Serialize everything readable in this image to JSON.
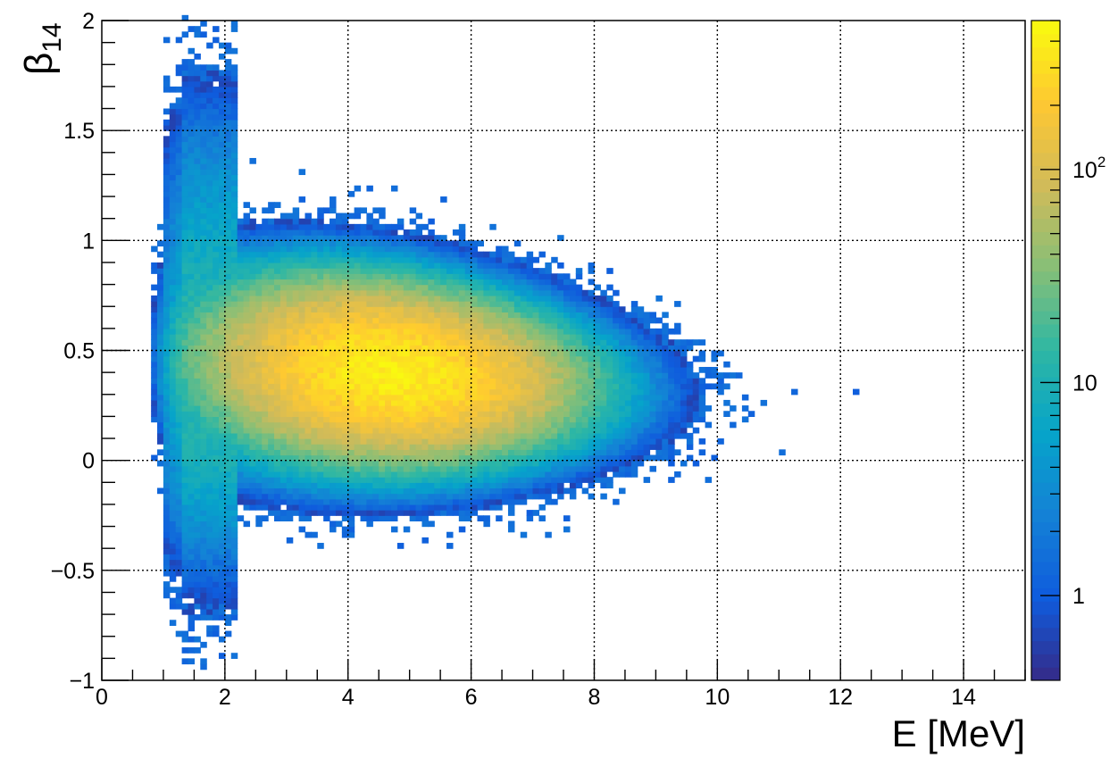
{
  "chart_data": {
    "type": "heatmap",
    "title": "",
    "xlabel": "E [MeV]",
    "ylabel_symbol": "β",
    "ylabel_subscript": "14",
    "xlim": [
      0,
      15
    ],
    "ylim": [
      -1,
      2
    ],
    "x_ticks": [
      {
        "value": 0,
        "label": "0"
      },
      {
        "value": 2,
        "label": "2"
      },
      {
        "value": 4,
        "label": "4"
      },
      {
        "value": 6,
        "label": "6"
      },
      {
        "value": 8,
        "label": "8"
      },
      {
        "value": 10,
        "label": "10"
      },
      {
        "value": 12,
        "label": "12"
      },
      {
        "value": 14,
        "label": "14"
      }
    ],
    "y_ticks": [
      {
        "value": -1,
        "label": "−1"
      },
      {
        "value": -0.5,
        "label": "−0.5"
      },
      {
        "value": 0,
        "label": "0"
      },
      {
        "value": 0.5,
        "label": "0.5"
      },
      {
        "value": 1,
        "label": "1"
      },
      {
        "value": 1.5,
        "label": "1.5"
      },
      {
        "value": 2,
        "label": "2"
      }
    ],
    "grid": true,
    "colorbar": {
      "scale": "log",
      "range": [
        0.4,
        500
      ],
      "ticks": [
        {
          "value": 1,
          "label": "1"
        },
        {
          "value": 10,
          "label": "10"
        },
        {
          "value": 100,
          "label": "10",
          "sup": "2"
        }
      ],
      "palette": [
        "#352a87",
        "#0f5cdd",
        "#1481d6",
        "#06a4ca",
        "#2eb7a4",
        "#87bf77",
        "#d1bb59",
        "#fec832",
        "#f9fb0e"
      ]
    },
    "distribution": {
      "description_values": "approximate 2D density of counts per bin",
      "x_bin_width": 0.1,
      "y_bin_width": 0.025,
      "peak_x": 4.7,
      "peak_y": 0.4,
      "peak_count": 400,
      "x_min_data": 0.8,
      "x_max_data": 12.1,
      "y_min_data": -0.9,
      "y_max_data": 2.0
    }
  }
}
